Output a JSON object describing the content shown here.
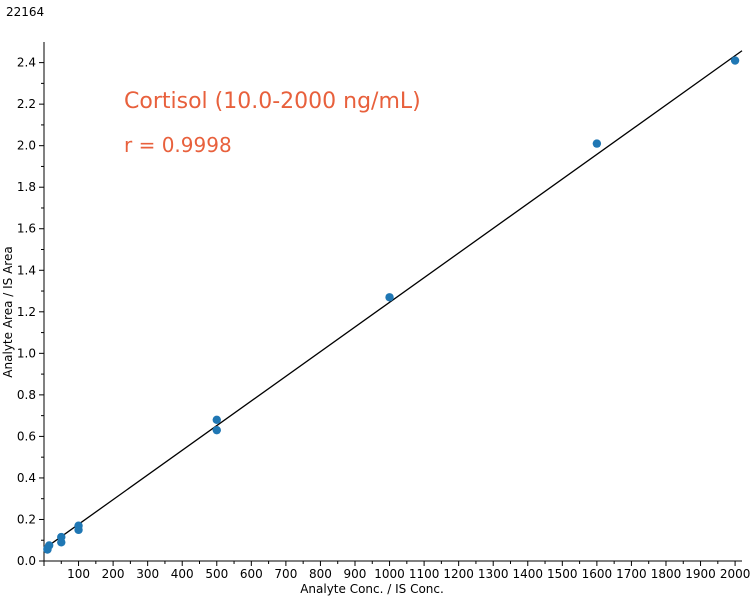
{
  "corner_id": "22164",
  "colors": {
    "point": "#1f77b4",
    "fit_line": "#000000",
    "annotation": "#e8603c",
    "axis": "#000000"
  },
  "chart_data": {
    "type": "scatter",
    "title": "",
    "xlabel": "Analyte Conc. / IS Conc.",
    "ylabel": "Analyte Area / IS Area",
    "xlim": [
      0,
      2020
    ],
    "ylim": [
      0,
      2.48
    ],
    "x_ticks": [
      100,
      200,
      300,
      400,
      500,
      600,
      700,
      800,
      900,
      1000,
      1100,
      1200,
      1300,
      1400,
      1500,
      1600,
      1700,
      1800,
      1900,
      2000
    ],
    "y_ticks": [
      "0.0",
      "0.2",
      "0.4",
      "0.6",
      "0.8",
      "1.0",
      "1.2",
      "1.4",
      "1.6",
      "1.8",
      "2.0",
      "2.2",
      "2.4"
    ],
    "annotations": [
      "Cortisol (10.0-2000 ng/mL)",
      "r = 0.9998"
    ],
    "fit_line": {
      "x": [
        0,
        2020
      ],
      "y": [
        0.058,
        2.457
      ]
    },
    "series": [
      {
        "points": [
          [
            10,
            0.055
          ],
          [
            10,
            0.06
          ],
          [
            15,
            0.075
          ],
          [
            50,
            0.09
          ],
          [
            50,
            0.115
          ],
          [
            100,
            0.15
          ],
          [
            100,
            0.17
          ],
          [
            500,
            0.63
          ],
          [
            500,
            0.68
          ],
          [
            1000,
            1.27
          ],
          [
            1600,
            2.01
          ],
          [
            2000,
            2.41
          ]
        ]
      }
    ]
  }
}
